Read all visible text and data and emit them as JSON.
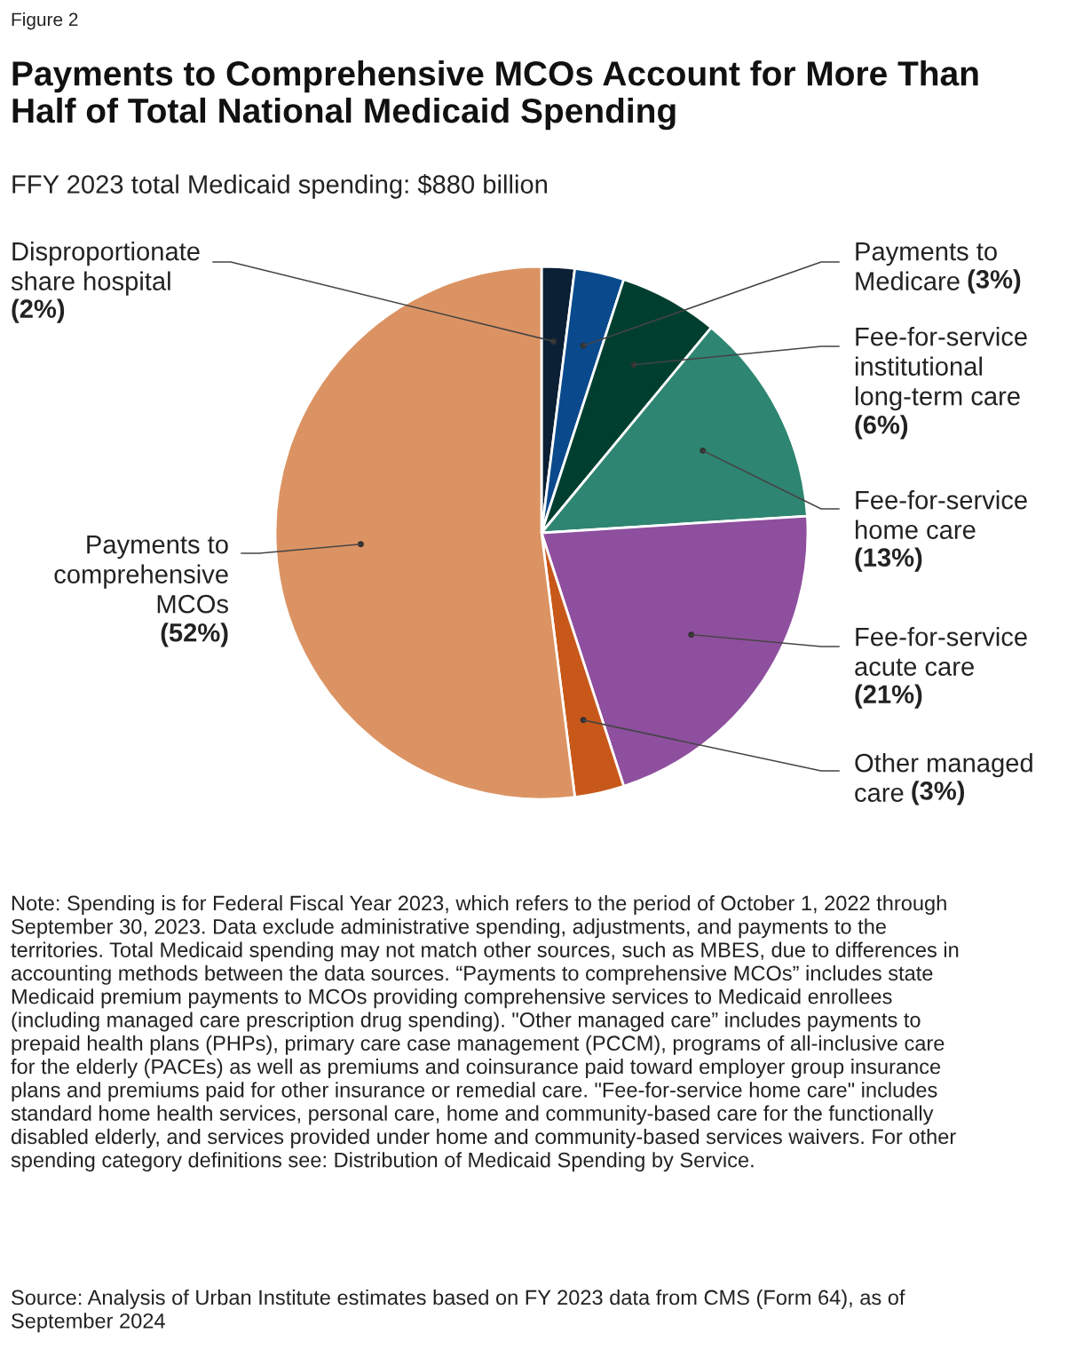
{
  "chart_data": {
    "type": "pie",
    "title": "Payments to Comprehensive MCOs Account for More Than Half of Total National Medicaid Spending",
    "subtitle": "FFY 2023 total Medicaid spending: $880 billion",
    "categories": [
      "Disproportionate share hospital",
      "Payments to Medicare",
      "Fee-for-service institutional long-term care",
      "Fee-for-service home care",
      "Fee-for-service acute care",
      "Other managed care",
      "Payments to comprehensive MCOs"
    ],
    "values": [
      2,
      3,
      6,
      13,
      21,
      3,
      52
    ],
    "value_labels": [
      "(2%)",
      "(3%)",
      "(6%)",
      "(13%)",
      "(21%)",
      "(3%)",
      "(52%)"
    ],
    "colors": [
      "#0b2035",
      "#0a4a8c",
      "#003f30",
      "#2e8571",
      "#8e4f9e",
      "#c8581a",
      "#dc9363"
    ],
    "legend": false,
    "annotations": [
      "Figure 2",
      "Note: Spending is for Federal Fiscal Year 2023, which refers to the period of October 1, 2022 through September 30, 2023. Data exclude administrative spending, adjustments, and payments to the territories. Total Medicaid spending may not match other sources, such as MBES, due to differences in accounting methods between the data sources. “Payments to comprehensive MCOs” includes state Medicaid premium payments to MCOs providing comprehensive services to Medicaid enrollees (including managed care prescription drug spending). \"Other managed care” includes payments to prepaid health plans (PHPs), primary care case management (PCCM), programs of all-inclusive care for the elderly (PACEs) as well as premiums and coinsurance paid toward employer group insurance plans and premiums paid for other insurance or remedial care. \"Fee-for-service home care\" includes standard home health services, personal care, home and community-based care for the functionally disabled elderly, and services provided under home and community-based services waivers. For other spending category definitions see: Distribution of Medicaid Spending by Service.",
      "Source: Analysis of Urban Institute estimates based on FY 2023 data from CMS (Form 64), as of September 2024"
    ]
  }
}
